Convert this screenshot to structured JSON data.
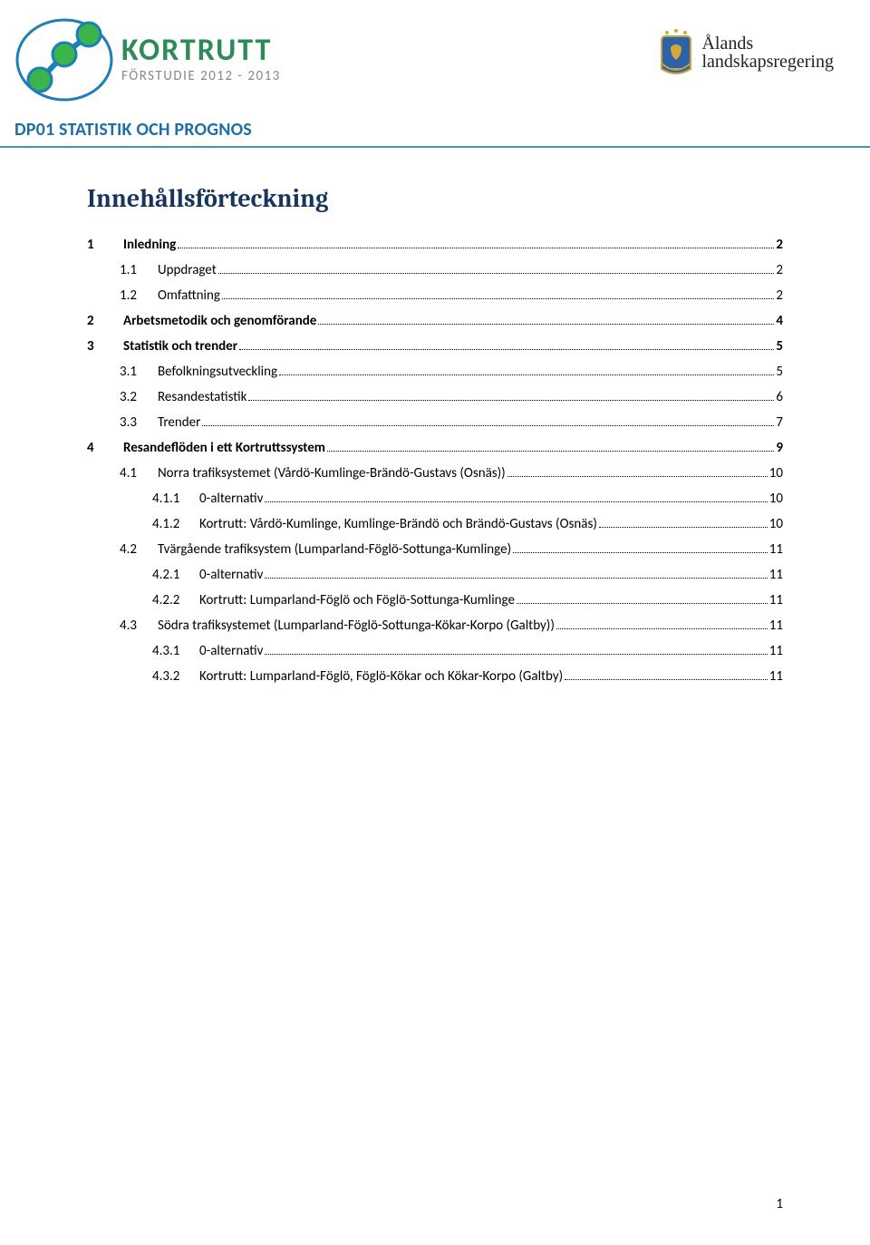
{
  "header": {
    "kortrutt_title": "KORTRUTT",
    "kortrutt_sub": "FÖRSTUDIE 2012 - 2013",
    "landskap_line1": "Ålands",
    "landskap_line2": "landskapsregering",
    "section_heading": "DP01 STATISTIK OCH PROGNOS"
  },
  "toc": {
    "title": "Innehållsförteckning",
    "entries": [
      {
        "level": 1,
        "num": "1",
        "label": "Inledning",
        "page": "2"
      },
      {
        "level": 2,
        "num": "1.1",
        "label": "Uppdraget",
        "page": "2"
      },
      {
        "level": 2,
        "num": "1.2",
        "label": "Omfattning",
        "page": "2"
      },
      {
        "level": 1,
        "num": "2",
        "label": "Arbetsmetodik och genomförande",
        "page": "4"
      },
      {
        "level": 1,
        "num": "3",
        "label": "Statistik och trender",
        "page": "5"
      },
      {
        "level": 2,
        "num": "3.1",
        "label": "Befolkningsutveckling",
        "page": "5"
      },
      {
        "level": 2,
        "num": "3.2",
        "label": "Resandestatistik",
        "page": "6"
      },
      {
        "level": 2,
        "num": "3.3",
        "label": "Trender",
        "page": "7"
      },
      {
        "level": 1,
        "num": "4",
        "label": "Resandeflöden i ett Kortruttssystem",
        "page": "9"
      },
      {
        "level": 2,
        "num": "4.1",
        "label": "Norra trafiksystemet (Vårdö-Kumlinge-Brändö-Gustavs (Osnäs))",
        "page": "10"
      },
      {
        "level": 3,
        "num": "4.1.1",
        "label": "0-alternativ",
        "page": "10"
      },
      {
        "level": 3,
        "num": "4.1.2",
        "label": "Kortrutt: Vårdö-Kumlinge, Kumlinge-Brändö och Brändö-Gustavs (Osnäs)",
        "page": "10"
      },
      {
        "level": 2,
        "num": "4.2",
        "label": "Tvärgående trafiksystem (Lumparland-Föglö-Sottunga-Kumlinge)",
        "page": "11"
      },
      {
        "level": 3,
        "num": "4.2.1",
        "label": "0-alternativ",
        "page": "11"
      },
      {
        "level": 3,
        "num": "4.2.2",
        "label": "Kortrutt: Lumparland-Föglö och Föglö-Sottunga-Kumlinge",
        "page": "11"
      },
      {
        "level": 2,
        "num": "4.3",
        "label": "Södra trafiksystemet (Lumparland-Föglö-Sottunga-Kökar-Korpo (Galtby))",
        "page": "11"
      },
      {
        "level": 3,
        "num": "4.3.1",
        "label": "0-alternativ",
        "page": "11"
      },
      {
        "level": 3,
        "num": "4.3.2",
        "label": "Kortrutt: Lumparland-Föglö, Föglö-Kökar och Kökar-Korpo (Galtby)",
        "page": "11"
      }
    ]
  },
  "page_number": "1",
  "colors": {
    "heading_blue": "#1f6ea5",
    "divider_blue": "#4a90c2",
    "toc_title_navy": "#17365d",
    "kortrutt_green": "#2e8b57"
  }
}
